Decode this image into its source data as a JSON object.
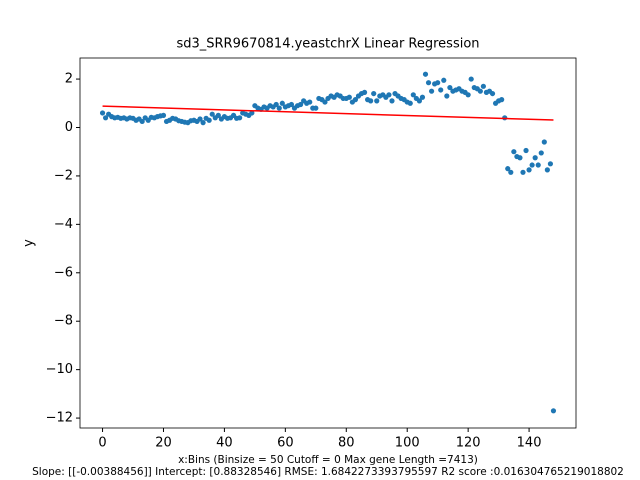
{
  "chart_data": {
    "type": "scatter",
    "title": "sd3_SRR9670814.yeastchrX Linear Regression",
    "ylabel": "y",
    "xlabel": [
      "x:Bins  (Binsize = 50 Cutoff = 0 Max gene Length =7413)",
      "Slope: [[-0.00388456]] Intercept: [0.88328546] RMSE: 1.6842273393795597 R2 score :0.016304765219018802"
    ],
    "xlim": [
      -7.4,
      155.4
    ],
    "ylim": [
      -12.41,
      2.87
    ],
    "xticks": [
      0,
      20,
      40,
      60,
      80,
      100,
      120,
      140
    ],
    "yticks": [
      {
        "value": -12,
        "label": "−12"
      },
      {
        "value": -10,
        "label": "−10"
      },
      {
        "value": -8,
        "label": "−8"
      },
      {
        "value": -6,
        "label": "−6"
      },
      {
        "value": -4,
        "label": "−4"
      },
      {
        "value": -2,
        "label": "−2"
      },
      0,
      2
    ],
    "series": [
      {
        "type": "scatter",
        "color": "#1f77b4",
        "x": [
          0,
          1,
          2,
          3,
          4,
          5,
          6,
          7,
          8,
          9,
          10,
          11,
          12,
          13,
          14,
          15,
          16,
          17,
          18,
          19,
          20,
          21,
          22,
          23,
          24,
          25,
          26,
          27,
          28,
          29,
          30,
          31,
          32,
          33,
          34,
          35,
          36,
          37,
          38,
          39,
          40,
          41,
          42,
          43,
          44,
          45,
          46,
          47,
          48,
          49,
          50,
          51,
          52,
          53,
          54,
          55,
          56,
          57,
          58,
          59,
          60,
          61,
          62,
          63,
          64,
          65,
          66,
          67,
          68,
          69,
          70,
          71,
          72,
          73,
          74,
          75,
          76,
          77,
          78,
          79,
          80,
          81,
          82,
          83,
          84,
          85,
          86,
          87,
          88,
          89,
          90,
          91,
          92,
          93,
          94,
          95,
          96,
          97,
          98,
          99,
          100,
          101,
          102,
          103,
          104,
          105,
          106,
          107,
          108,
          109,
          110,
          111,
          112,
          113,
          114,
          115,
          116,
          117,
          118,
          119,
          120,
          121,
          122,
          123,
          124,
          125,
          126,
          127,
          128,
          129,
          130,
          131,
          132,
          133,
          134,
          135,
          136,
          137,
          138,
          139,
          140,
          141,
          142,
          143,
          144,
          145,
          146,
          147,
          148
        ],
        "values": [
          0.6,
          0.4,
          0.55,
          0.45,
          0.4,
          0.42,
          0.38,
          0.4,
          0.35,
          0.4,
          0.38,
          0.3,
          0.35,
          0.25,
          0.4,
          0.3,
          0.42,
          0.4,
          0.45,
          0.48,
          0.5,
          0.25,
          0.3,
          0.38,
          0.35,
          0.28,
          0.25,
          0.22,
          0.2,
          0.28,
          0.3,
          0.25,
          0.35,
          0.2,
          0.38,
          0.3,
          0.55,
          0.4,
          0.5,
          0.35,
          0.45,
          0.38,
          0.4,
          0.5,
          0.38,
          0.4,
          0.6,
          0.55,
          0.5,
          0.6,
          0.9,
          0.8,
          0.75,
          0.85,
          0.8,
          0.9,
          0.85,
          0.95,
          0.8,
          1.0,
          0.85,
          0.9,
          0.95,
          0.8,
          0.9,
          0.95,
          1.1,
          1.0,
          1.05,
          0.8,
          0.8,
          1.2,
          1.15,
          1.05,
          1.2,
          1.3,
          1.25,
          1.35,
          1.3,
          1.2,
          1.2,
          1.25,
          1.05,
          1.15,
          1.3,
          1.4,
          1.45,
          1.15,
          1.1,
          1.4,
          1.1,
          1.3,
          1.35,
          1.25,
          1.35,
          1.1,
          1.4,
          1.3,
          1.2,
          1.15,
          1.05,
          1.0,
          1.35,
          1.2,
          1.1,
          1.25,
          2.2,
          1.85,
          1.5,
          1.8,
          1.85,
          1.55,
          1.95,
          1.3,
          1.65,
          1.5,
          1.55,
          1.6,
          1.5,
          1.45,
          1.35,
          2.0,
          1.65,
          1.6,
          1.5,
          1.7,
          1.45,
          1.5,
          1.4,
          1.0,
          1.1,
          1.15,
          0.4,
          -1.7,
          -1.85,
          -1.0,
          -1.2,
          -1.25,
          -1.85,
          -0.95,
          -1.75,
          -1.55,
          -1.25,
          -1.55,
          -1.05,
          -0.6,
          -1.75,
          -1.5,
          -11.7
        ]
      },
      {
        "type": "line",
        "color": "#ff0000",
        "x": [
          0,
          148
        ],
        "values": [
          0.883,
          0.308
        ]
      }
    ]
  }
}
